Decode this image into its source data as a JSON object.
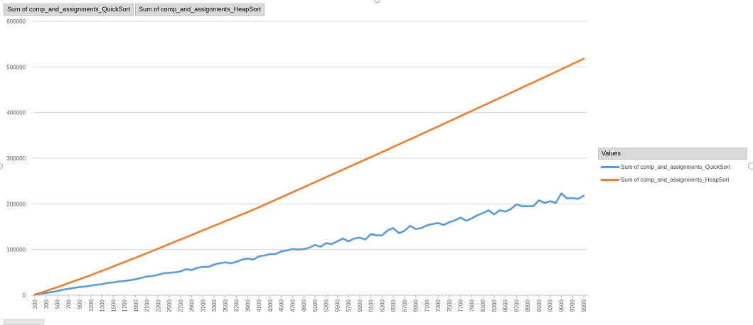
{
  "field_buttons": [
    {
      "label": "Sum of comp_and_assignments_QuickSort"
    },
    {
      "label": "Sum of comp_and_assignments_HeapSort"
    }
  ],
  "legend": {
    "title": "Values",
    "items": [
      {
        "label": "Sum of comp_and_assignments_QuickSort",
        "color": "#5b9bd5"
      },
      {
        "label": "Sum of comp_and_assignments_HeapSort",
        "color": "#ed7d31"
      }
    ]
  },
  "chart_data": {
    "type": "line",
    "title": "",
    "xlabel": "",
    "ylabel": "",
    "x": [
      100,
      200,
      300,
      400,
      500,
      600,
      700,
      800,
      900,
      1000,
      1100,
      1200,
      1300,
      1400,
      1500,
      1600,
      1700,
      1800,
      1900,
      2000,
      2100,
      2200,
      2300,
      2400,
      2500,
      2600,
      2700,
      2800,
      2900,
      3000,
      3100,
      3200,
      3300,
      3400,
      3500,
      3600,
      3700,
      3800,
      3900,
      4000,
      4100,
      4200,
      4300,
      4400,
      4500,
      4600,
      4700,
      4800,
      4900,
      5000,
      5100,
      5200,
      5300,
      5400,
      5500,
      5600,
      5700,
      5800,
      5900,
      6000,
      6100,
      6200,
      6300,
      6400,
      6500,
      6600,
      6700,
      6800,
      6900,
      7000,
      7100,
      7200,
      7300,
      7400,
      7500,
      7600,
      7700,
      7800,
      7900,
      8000,
      8100,
      8200,
      8300,
      8400,
      8500,
      8600,
      8700,
      8800,
      8900,
      9000,
      9100,
      9200,
      9300,
      9400,
      9500,
      9600,
      9700,
      9800,
      9900
    ],
    "x_tick_labels": [
      "100",
      "300",
      "500",
      "700",
      "900",
      "1100",
      "1300",
      "1500",
      "1700",
      "1900",
      "2100",
      "2300",
      "2500",
      "2700",
      "2900",
      "3100",
      "3300",
      "3500",
      "3700",
      "3900",
      "4100",
      "4300",
      "4500",
      "4700",
      "4900",
      "5100",
      "5300",
      "5500",
      "5700",
      "5900",
      "6100",
      "6300",
      "6500",
      "6700",
      "6900",
      "7100",
      "7300",
      "7500",
      "7700",
      "7900",
      "8100",
      "8300",
      "8500",
      "8700",
      "8900",
      "9100",
      "9300",
      "9500",
      "9700",
      "9900"
    ],
    "y_ticks": [
      0,
      100000,
      200000,
      300000,
      400000,
      500000,
      600000
    ],
    "y_tick_labels": [
      "0",
      "100000",
      "200000",
      "300000",
      "400000",
      "500000",
      "600000"
    ],
    "ylim": [
      0,
      600000
    ],
    "grid": true,
    "legend_position": "right",
    "series": [
      {
        "name": "Sum of comp_and_assignments_QuickSort",
        "color": "#5b9bd5",
        "values": [
          1000,
          3000,
          5000,
          7000,
          9000,
          12000,
          14000,
          16000,
          18000,
          19000,
          21000,
          23000,
          24000,
          27000,
          28000,
          30000,
          31000,
          33000,
          35000,
          38000,
          41000,
          42000,
          45000,
          48000,
          49000,
          50000,
          52000,
          57000,
          55000,
          60000,
          62000,
          62000,
          67000,
          70000,
          72000,
          70000,
          73000,
          78000,
          80000,
          78000,
          85000,
          87000,
          90000,
          90000,
          96000,
          98000,
          101000,
          100000,
          101000,
          104000,
          110000,
          106000,
          114000,
          112000,
          118000,
          124000,
          118000,
          124000,
          126000,
          122000,
          134000,
          131000,
          131000,
          142000,
          147000,
          136000,
          141000,
          152000,
          145000,
          147000,
          153000,
          156000,
          158000,
          154000,
          160000,
          164000,
          170000,
          163000,
          168000,
          175000,
          180000,
          186000,
          177000,
          186000,
          183000,
          189000,
          199000,
          195000,
          195000,
          195000,
          208000,
          202000,
          206000,
          202000,
          223000,
          212000,
          213000,
          211000,
          218000
        ]
      },
      {
        "name": "Sum of comp_and_assignments_HeapSort",
        "color": "#ed7d31",
        "values": [
          1500,
          5200,
          9200,
          13500,
          17200,
          21800,
          26500,
          31000,
          35000,
          39500,
          44000,
          48800,
          53500,
          58000,
          63000,
          68000,
          72500,
          77500,
          82000,
          87000,
          92000,
          97000,
          102000,
          107000,
          112000,
          117000,
          122000,
          127000,
          132000,
          137000,
          142000,
          147000,
          152000,
          157000,
          162000,
          167000,
          172000,
          177000,
          182000,
          187500,
          192500,
          198000,
          203500,
          209000,
          214500,
          220000,
          225500,
          231000,
          236500,
          242000,
          247500,
          253000,
          258500,
          264000,
          269500,
          275000,
          280500,
          286000,
          291500,
          297000,
          302500,
          308000,
          313500,
          319000,
          325000,
          330500,
          336000,
          341500,
          347000,
          353000,
          358500,
          364000,
          369500,
          375500,
          381000,
          386500,
          392500,
          398000,
          403500,
          409500,
          415000,
          420500,
          426500,
          432000,
          437500,
          443500,
          449000,
          455000,
          460500,
          466000,
          472000,
          477500,
          483500,
          489000,
          495000,
          500500,
          506500,
          512000,
          518000
        ]
      }
    ]
  }
}
